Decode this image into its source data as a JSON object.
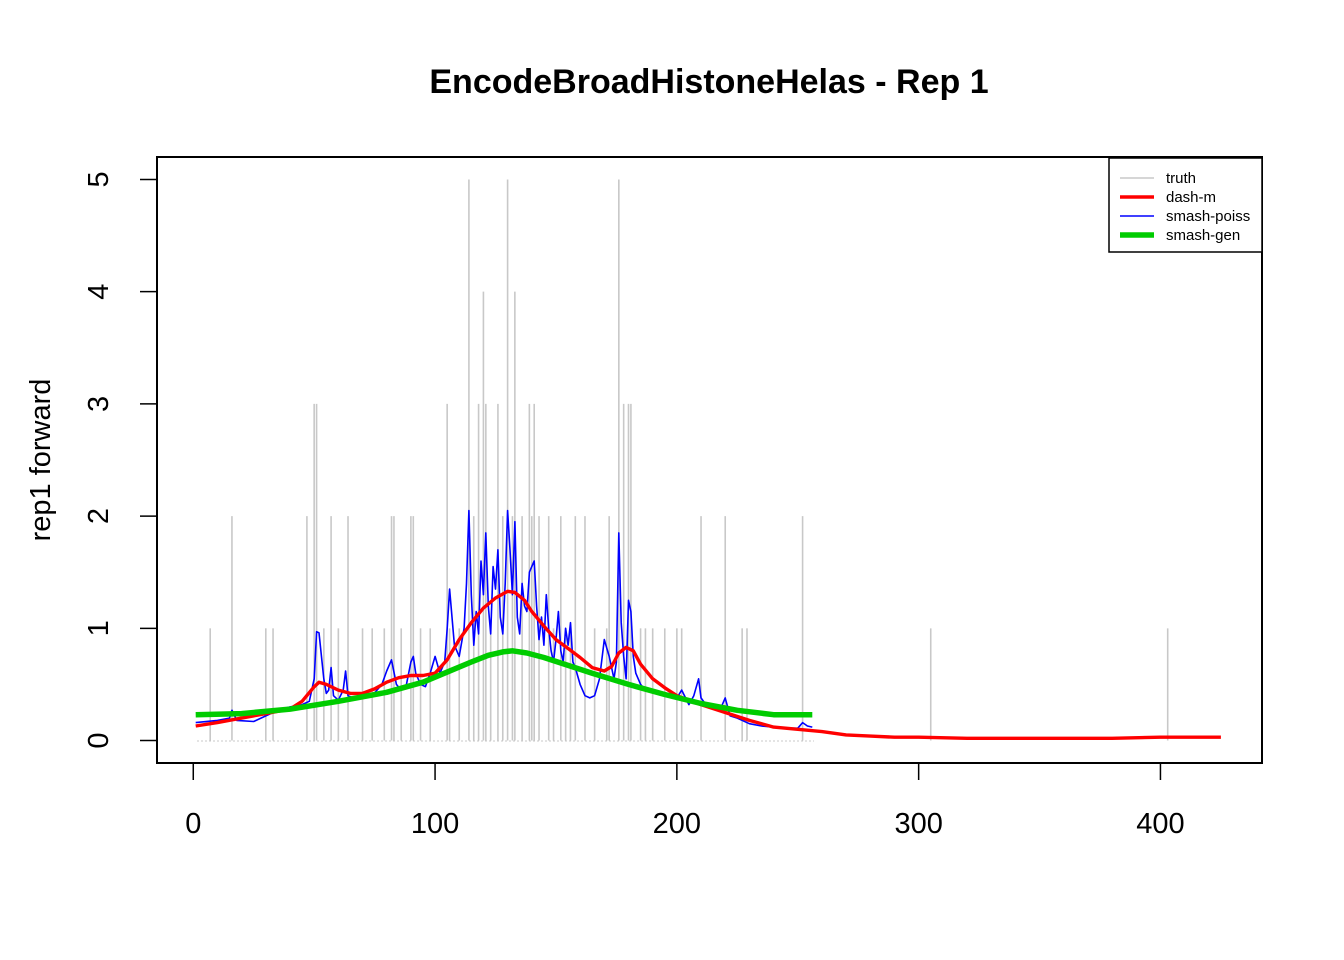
{
  "chart_data": {
    "type": "line",
    "title": "EncodeBroadHistoneHelas - Rep 1",
    "xlabel": "",
    "ylabel": "rep1 forward",
    "xlim": [
      -15,
      442
    ],
    "ylim": [
      -0.2,
      5.2
    ],
    "xticks": [
      0,
      100,
      200,
      300,
      400
    ],
    "yticks": [
      0,
      1,
      2,
      3,
      4,
      5
    ],
    "grid": false,
    "legend_position": "top-right",
    "colors": {
      "truth": "#c8c8c8",
      "dash_m": "#ff0000",
      "smash_poiss": "#0000ff",
      "smash_gen": "#00cc00",
      "axis": "#000000"
    },
    "series": [
      {
        "name": "truth",
        "style": "spikes",
        "x": [
          7,
          16,
          30,
          33,
          47,
          50,
          51,
          54,
          57,
          60,
          64,
          70,
          74,
          79,
          82,
          83,
          86,
          90,
          91,
          94,
          98,
          105,
          106,
          110,
          114,
          116,
          118,
          120,
          121,
          123,
          126,
          128,
          130,
          132,
          133,
          136,
          139,
          140,
          141,
          143,
          147,
          149,
          152,
          154,
          156,
          158,
          162,
          166,
          171,
          172,
          176,
          178,
          180,
          181,
          185,
          187,
          190,
          195,
          200,
          202,
          210,
          220,
          227,
          229,
          252,
          305,
          403
        ],
        "y": [
          1,
          2,
          1,
          1,
          2,
          3,
          3,
          1,
          2,
          1,
          2,
          1,
          1,
          1,
          2,
          2,
          1,
          2,
          2,
          1,
          1,
          3,
          1,
          1,
          5,
          2,
          3,
          4,
          3,
          1,
          3,
          2,
          5,
          2,
          4,
          2,
          3,
          2,
          3,
          2,
          2,
          1,
          2,
          1,
          1,
          2,
          2,
          1,
          1,
          2,
          5,
          3,
          3,
          3,
          1,
          1,
          1,
          1,
          1,
          1,
          2,
          2,
          1,
          1,
          2,
          1,
          1
        ]
      },
      {
        "name": "dash-m",
        "style": "line",
        "x": [
          1,
          10,
          20,
          30,
          40,
          45,
          50,
          52,
          55,
          60,
          65,
          70,
          75,
          80,
          85,
          90,
          95,
          100,
          105,
          110,
          115,
          120,
          125,
          130,
          133,
          137,
          140,
          145,
          150,
          155,
          160,
          165,
          170,
          173,
          176,
          179,
          182,
          185,
          190,
          195,
          200,
          210,
          220,
          230,
          240,
          250,
          260,
          270,
          280,
          290,
          300,
          320,
          350,
          380,
          400,
          425
        ],
        "y": [
          0.13,
          0.16,
          0.2,
          0.24,
          0.28,
          0.35,
          0.48,
          0.52,
          0.5,
          0.45,
          0.42,
          0.42,
          0.46,
          0.52,
          0.56,
          0.58,
          0.58,
          0.6,
          0.72,
          0.9,
          1.05,
          1.18,
          1.27,
          1.33,
          1.32,
          1.25,
          1.15,
          1.02,
          0.9,
          0.82,
          0.74,
          0.65,
          0.62,
          0.66,
          0.78,
          0.83,
          0.8,
          0.68,
          0.55,
          0.47,
          0.4,
          0.32,
          0.25,
          0.18,
          0.12,
          0.1,
          0.08,
          0.05,
          0.04,
          0.03,
          0.03,
          0.02,
          0.02,
          0.02,
          0.03,
          0.03
        ]
      },
      {
        "name": "smash-poiss",
        "style": "line",
        "x": [
          1,
          10,
          15,
          16,
          18,
          25,
          30,
          35,
          40,
          45,
          48,
          50,
          51,
          52,
          54,
          55,
          56,
          57,
          58,
          60,
          62,
          63,
          64,
          66,
          70,
          74,
          78,
          80,
          82,
          84,
          86,
          88,
          90,
          91,
          92,
          94,
          96,
          98,
          100,
          102,
          104,
          105,
          106,
          108,
          110,
          112,
          113,
          114,
          115,
          116,
          117,
          118,
          119,
          120,
          121,
          122,
          123,
          124,
          125,
          126,
          127,
          128,
          129,
          130,
          131,
          132,
          133,
          134,
          135,
          136,
          137,
          138,
          139,
          140,
          141,
          142,
          143,
          144,
          145,
          146,
          147,
          148,
          149,
          150,
          151,
          152,
          153,
          154,
          155,
          156,
          157,
          158,
          160,
          162,
          164,
          166,
          168,
          170,
          172,
          174,
          175,
          176,
          177,
          178,
          179,
          180,
          181,
          182,
          183,
          185,
          187,
          190,
          193,
          196,
          200,
          202,
          205,
          207,
          209,
          210,
          212,
          215,
          218,
          220,
          222,
          225,
          230,
          235,
          240,
          245,
          250,
          252,
          254,
          256
        ],
        "y": [
          0.16,
          0.18,
          0.2,
          0.27,
          0.18,
          0.17,
          0.22,
          0.27,
          0.3,
          0.32,
          0.35,
          0.55,
          0.97,
          0.96,
          0.55,
          0.42,
          0.45,
          0.65,
          0.4,
          0.36,
          0.45,
          0.62,
          0.4,
          0.38,
          0.38,
          0.4,
          0.5,
          0.62,
          0.72,
          0.5,
          0.45,
          0.48,
          0.7,
          0.75,
          0.6,
          0.5,
          0.48,
          0.6,
          0.75,
          0.6,
          0.7,
          1.0,
          1.35,
          0.85,
          0.75,
          1.0,
          1.4,
          2.05,
          1.3,
          0.85,
          1.15,
          0.95,
          1.6,
          1.3,
          1.85,
          1.2,
          0.95,
          1.55,
          1.35,
          1.7,
          1.1,
          0.95,
          1.4,
          2.05,
          1.7,
          1.3,
          1.95,
          1.1,
          0.95,
          1.4,
          1.2,
          1.15,
          1.5,
          1.55,
          1.6,
          1.2,
          0.9,
          1.1,
          0.85,
          1.3,
          1.0,
          0.8,
          0.7,
          0.9,
          1.15,
          0.8,
          0.7,
          1.0,
          0.85,
          1.05,
          0.7,
          0.65,
          0.5,
          0.4,
          0.38,
          0.4,
          0.55,
          0.9,
          0.75,
          0.55,
          0.7,
          1.85,
          1.05,
          0.75,
          0.55,
          1.25,
          1.15,
          0.75,
          0.6,
          0.5,
          0.45,
          0.45,
          0.42,
          0.4,
          0.38,
          0.45,
          0.32,
          0.4,
          0.55,
          0.38,
          0.32,
          0.3,
          0.28,
          0.38,
          0.22,
          0.2,
          0.15,
          0.13,
          0.12,
          0.11,
          0.11,
          0.16,
          0.13,
          0.12
        ]
      },
      {
        "name": "smash-gen",
        "style": "line",
        "x": [
          1,
          20,
          40,
          60,
          80,
          95,
          105,
          115,
          122,
          128,
          132,
          138,
          145,
          155,
          165,
          180,
          195,
          210,
          225,
          240,
          256
        ],
        "y": [
          0.23,
          0.24,
          0.28,
          0.35,
          0.43,
          0.52,
          0.61,
          0.7,
          0.76,
          0.79,
          0.8,
          0.78,
          0.74,
          0.67,
          0.6,
          0.5,
          0.41,
          0.33,
          0.27,
          0.23,
          0.23
        ]
      }
    ]
  }
}
